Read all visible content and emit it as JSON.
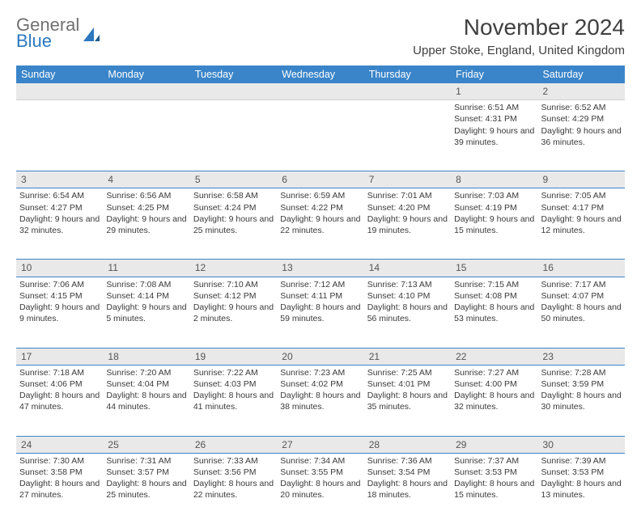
{
  "logo": {
    "line1": "General",
    "line2": "Blue"
  },
  "header": {
    "month_title": "November 2024",
    "location": "Upper Stoke, England, United Kingdom"
  },
  "colors": {
    "header_bg": "#3a85c9",
    "header_text": "#ffffff",
    "daynum_bg": "#e9e9e9",
    "border": "#3a85c9",
    "body_text": "#3a3a3a",
    "logo_gray": "#707070",
    "logo_blue": "#2b78bf"
  },
  "day_names": [
    "Sunday",
    "Monday",
    "Tuesday",
    "Wednesday",
    "Thursday",
    "Friday",
    "Saturday"
  ],
  "weeks": [
    [
      null,
      null,
      null,
      null,
      null,
      {
        "n": "1",
        "sunrise": "6:51 AM",
        "sunset": "4:31 PM",
        "daylight": "9 hours and 39 minutes."
      },
      {
        "n": "2",
        "sunrise": "6:52 AM",
        "sunset": "4:29 PM",
        "daylight": "9 hours and 36 minutes."
      }
    ],
    [
      {
        "n": "3",
        "sunrise": "6:54 AM",
        "sunset": "4:27 PM",
        "daylight": "9 hours and 32 minutes."
      },
      {
        "n": "4",
        "sunrise": "6:56 AM",
        "sunset": "4:25 PM",
        "daylight": "9 hours and 29 minutes."
      },
      {
        "n": "5",
        "sunrise": "6:58 AM",
        "sunset": "4:24 PM",
        "daylight": "9 hours and 25 minutes."
      },
      {
        "n": "6",
        "sunrise": "6:59 AM",
        "sunset": "4:22 PM",
        "daylight": "9 hours and 22 minutes."
      },
      {
        "n": "7",
        "sunrise": "7:01 AM",
        "sunset": "4:20 PM",
        "daylight": "9 hours and 19 minutes."
      },
      {
        "n": "8",
        "sunrise": "7:03 AM",
        "sunset": "4:19 PM",
        "daylight": "9 hours and 15 minutes."
      },
      {
        "n": "9",
        "sunrise": "7:05 AM",
        "sunset": "4:17 PM",
        "daylight": "9 hours and 12 minutes."
      }
    ],
    [
      {
        "n": "10",
        "sunrise": "7:06 AM",
        "sunset": "4:15 PM",
        "daylight": "9 hours and 9 minutes."
      },
      {
        "n": "11",
        "sunrise": "7:08 AM",
        "sunset": "4:14 PM",
        "daylight": "9 hours and 5 minutes."
      },
      {
        "n": "12",
        "sunrise": "7:10 AM",
        "sunset": "4:12 PM",
        "daylight": "9 hours and 2 minutes."
      },
      {
        "n": "13",
        "sunrise": "7:12 AM",
        "sunset": "4:11 PM",
        "daylight": "8 hours and 59 minutes."
      },
      {
        "n": "14",
        "sunrise": "7:13 AM",
        "sunset": "4:10 PM",
        "daylight": "8 hours and 56 minutes."
      },
      {
        "n": "15",
        "sunrise": "7:15 AM",
        "sunset": "4:08 PM",
        "daylight": "8 hours and 53 minutes."
      },
      {
        "n": "16",
        "sunrise": "7:17 AM",
        "sunset": "4:07 PM",
        "daylight": "8 hours and 50 minutes."
      }
    ],
    [
      {
        "n": "17",
        "sunrise": "7:18 AM",
        "sunset": "4:06 PM",
        "daylight": "8 hours and 47 minutes."
      },
      {
        "n": "18",
        "sunrise": "7:20 AM",
        "sunset": "4:04 PM",
        "daylight": "8 hours and 44 minutes."
      },
      {
        "n": "19",
        "sunrise": "7:22 AM",
        "sunset": "4:03 PM",
        "daylight": "8 hours and 41 minutes."
      },
      {
        "n": "20",
        "sunrise": "7:23 AM",
        "sunset": "4:02 PM",
        "daylight": "8 hours and 38 minutes."
      },
      {
        "n": "21",
        "sunrise": "7:25 AM",
        "sunset": "4:01 PM",
        "daylight": "8 hours and 35 minutes."
      },
      {
        "n": "22",
        "sunrise": "7:27 AM",
        "sunset": "4:00 PM",
        "daylight": "8 hours and 32 minutes."
      },
      {
        "n": "23",
        "sunrise": "7:28 AM",
        "sunset": "3:59 PM",
        "daylight": "8 hours and 30 minutes."
      }
    ],
    [
      {
        "n": "24",
        "sunrise": "7:30 AM",
        "sunset": "3:58 PM",
        "daylight": "8 hours and 27 minutes."
      },
      {
        "n": "25",
        "sunrise": "7:31 AM",
        "sunset": "3:57 PM",
        "daylight": "8 hours and 25 minutes."
      },
      {
        "n": "26",
        "sunrise": "7:33 AM",
        "sunset": "3:56 PM",
        "daylight": "8 hours and 22 minutes."
      },
      {
        "n": "27",
        "sunrise": "7:34 AM",
        "sunset": "3:55 PM",
        "daylight": "8 hours and 20 minutes."
      },
      {
        "n": "28",
        "sunrise": "7:36 AM",
        "sunset": "3:54 PM",
        "daylight": "8 hours and 18 minutes."
      },
      {
        "n": "29",
        "sunrise": "7:37 AM",
        "sunset": "3:53 PM",
        "daylight": "8 hours and 15 minutes."
      },
      {
        "n": "30",
        "sunrise": "7:39 AM",
        "sunset": "3:53 PM",
        "daylight": "8 hours and 13 minutes."
      }
    ]
  ],
  "labels": {
    "sunrise": "Sunrise:",
    "sunset": "Sunset:",
    "daylight": "Daylight:"
  }
}
